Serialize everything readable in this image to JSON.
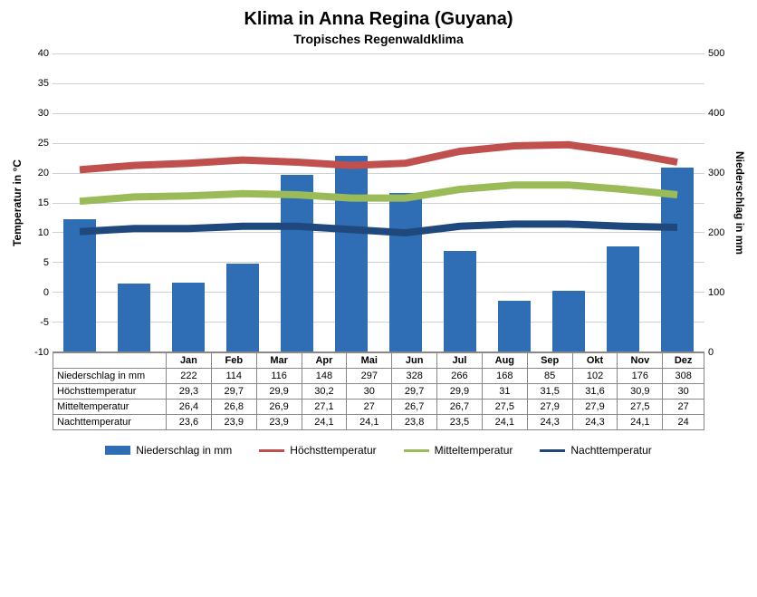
{
  "title": "Klima in Anna Regina (Guyana)",
  "subtitle": "Tropisches Regenwaldklima",
  "ylabel_left": "Temperatur in °C",
  "ylabel_right": "Niederschlag in mm",
  "months": [
    "Jan",
    "Feb",
    "Mar",
    "Apr",
    "Mai",
    "Jun",
    "Jul",
    "Aug",
    "Sep",
    "Okt",
    "Nov",
    "Dez"
  ],
  "rows": {
    "precip": {
      "label": "Niederschlag in mm",
      "values": [
        222,
        114,
        116,
        148,
        297,
        328,
        266,
        168,
        85,
        102,
        176,
        308
      ]
    },
    "high": {
      "label": "Höchsttemperatur",
      "values": [
        29.3,
        29.7,
        29.9,
        30.2,
        30.0,
        29.7,
        29.9,
        31.0,
        31.5,
        31.6,
        30.9,
        30.0
      ]
    },
    "mean": {
      "label": "Mitteltemperatur",
      "values": [
        26.4,
        26.8,
        26.9,
        27.1,
        27.0,
        26.7,
        26.7,
        27.5,
        27.9,
        27.9,
        27.5,
        27.0
      ]
    },
    "night": {
      "label": "Nachttemperatur",
      "values": [
        23.6,
        23.9,
        23.9,
        24.1,
        24.1,
        23.8,
        23.5,
        24.1,
        24.3,
        24.3,
        24.1,
        24.0
      ]
    }
  },
  "axes": {
    "temp": {
      "min": -10,
      "max": 40,
      "step": 5
    },
    "precip": {
      "min": 0,
      "max": 500,
      "step": 100
    }
  },
  "colors": {
    "bar": "#2f6eb5",
    "high": "#c0504d",
    "mean": "#9bbb59",
    "night": "#1f497d",
    "grid": "#d0d0d0",
    "bg": "#ffffff"
  },
  "legend": [
    {
      "type": "bar",
      "key": "precip",
      "label": "Niederschlag in mm",
      "color": "#2f6eb5"
    },
    {
      "type": "line",
      "key": "high",
      "label": "Höchsttemperatur",
      "color": "#c0504d"
    },
    {
      "type": "line",
      "key": "mean",
      "label": "Mitteltemperatur",
      "color": "#9bbb59"
    },
    {
      "type": "line",
      "key": "night",
      "label": "Nachttemperatur",
      "color": "#1f497d"
    }
  ]
}
